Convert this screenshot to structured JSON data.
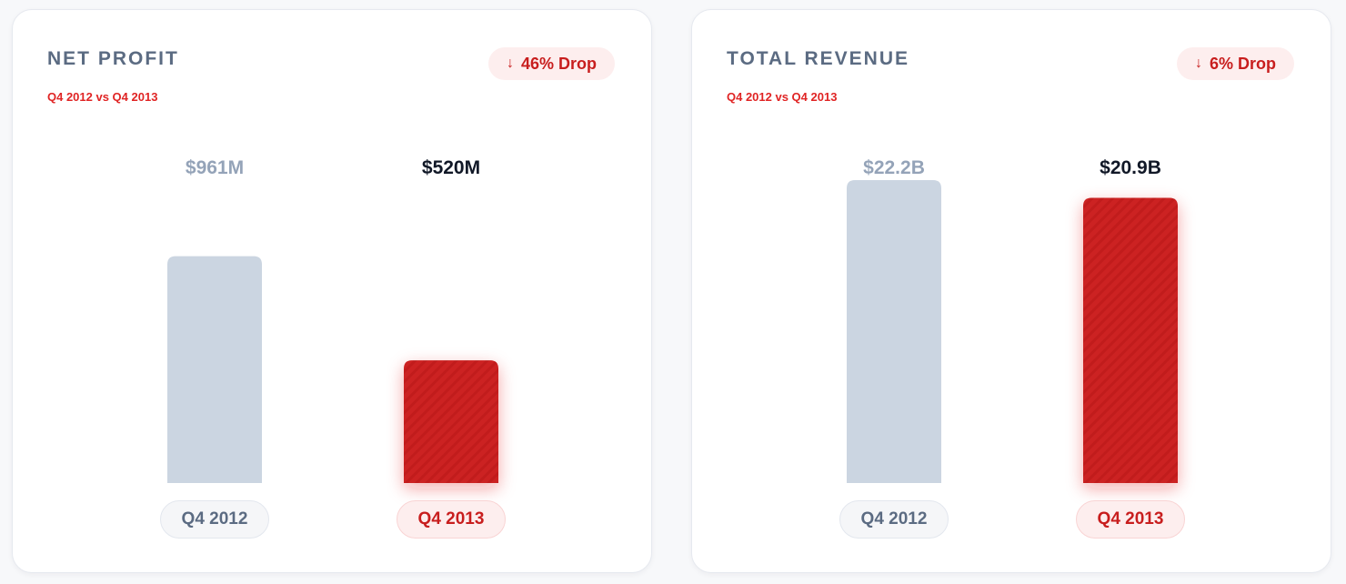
{
  "colors": {
    "previous_bar": "#cbd5e1",
    "current_bar": "#cc2121",
    "previous_value": "#94a3b8",
    "current_value": "#111827",
    "accent_red": "#e02424"
  },
  "cards": [
    {
      "title": "NET PROFIT",
      "subtitle": "Q4 2012 vs Q4 2013",
      "badge": {
        "icon": "arrow-down-icon",
        "arrow": "↓",
        "text": "46% Drop"
      },
      "bars": [
        {
          "category": "Q4 2012",
          "value_label": "$961M"
        },
        {
          "category": "Q4 2013",
          "value_label": "$520M"
        }
      ]
    },
    {
      "title": "TOTAL REVENUE",
      "subtitle": "Q4 2012 vs Q4 2013",
      "badge": {
        "icon": "arrow-down-icon",
        "arrow": "↓",
        "text": "6% Drop"
      },
      "bars": [
        {
          "category": "Q4 2012",
          "value_label": "$22.2B"
        },
        {
          "category": "Q4 2013",
          "value_label": "$20.9B"
        }
      ]
    }
  ],
  "chart_data": [
    {
      "type": "bar",
      "title": "NET PROFIT",
      "subtitle": "Q4 2012 vs Q4 2013",
      "categories": [
        "Q4 2012",
        "Q4 2013"
      ],
      "values": [
        961,
        520
      ],
      "unit": "M",
      "data_labels": [
        "$961M",
        "$520M"
      ],
      "ylim": [
        0,
        1850
      ],
      "grid": false,
      "legend": "none"
    },
    {
      "type": "bar",
      "title": "TOTAL REVENUE",
      "subtitle": "Q4 2012 vs Q4 2013",
      "categories": [
        "Q4 2012",
        "Q4 2013"
      ],
      "values": [
        22.2,
        20.9
      ],
      "unit": "B",
      "data_labels": [
        "$22.2B",
        "$20.9B"
      ],
      "ylim": [
        0,
        32
      ],
      "grid": false,
      "legend": "none"
    }
  ]
}
